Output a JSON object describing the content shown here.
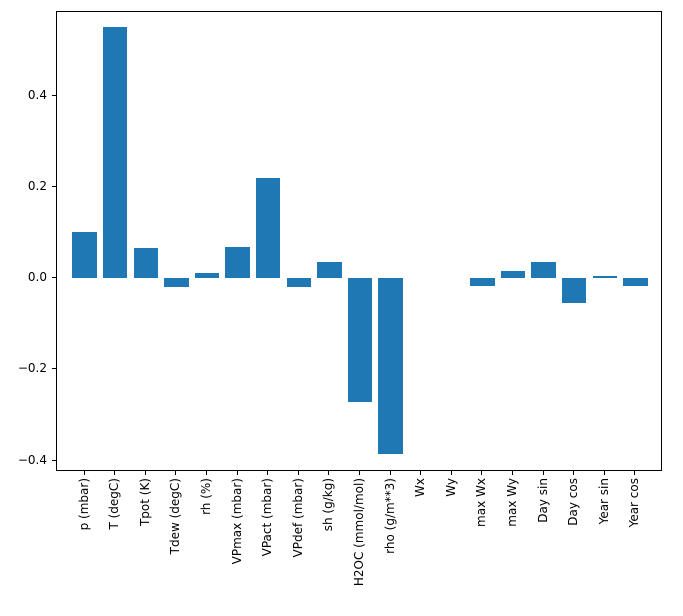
{
  "figure": {
    "background": "#ffffff",
    "axes_border_color": "#000000"
  },
  "chart_data": {
    "type": "bar",
    "title": "",
    "xlabel": "",
    "ylabel": "",
    "grid": false,
    "legend": null,
    "bar_color": "#1f77b4",
    "x_tick_label_rotation_deg": 90,
    "categories": [
      "p (mbar)",
      "T (degC)",
      "Tpot (K)",
      "Tdew (degC)",
      "rh (%)",
      "VPmax (mbar)",
      "VPact (mbar)",
      "VPdef (mbar)",
      "sh (g/kg)",
      "H2OC (mmol/mol)",
      "rho (g/m**3)",
      "Wx",
      "Wy",
      "max Wx",
      "max Wy",
      "Day sin",
      "Day cos",
      "Year sin",
      "Year cos"
    ],
    "values": [
      0.1,
      0.55,
      0.065,
      -0.02,
      0.012,
      0.068,
      0.22,
      -0.02,
      0.035,
      -0.272,
      -0.385,
      0.0,
      0.0,
      -0.018,
      0.015,
      0.035,
      -0.055,
      0.004,
      -0.018
    ],
    "yticks": [
      -0.4,
      -0.2,
      0.0,
      0.2,
      0.4
    ],
    "ytick_labels": [
      "−0.4",
      "−0.2",
      "0.0",
      "0.2",
      "0.4"
    ],
    "ylim": [
      -0.425,
      0.583
    ],
    "bar_width_fraction": 0.8,
    "x_margin_units": 0.9
  }
}
